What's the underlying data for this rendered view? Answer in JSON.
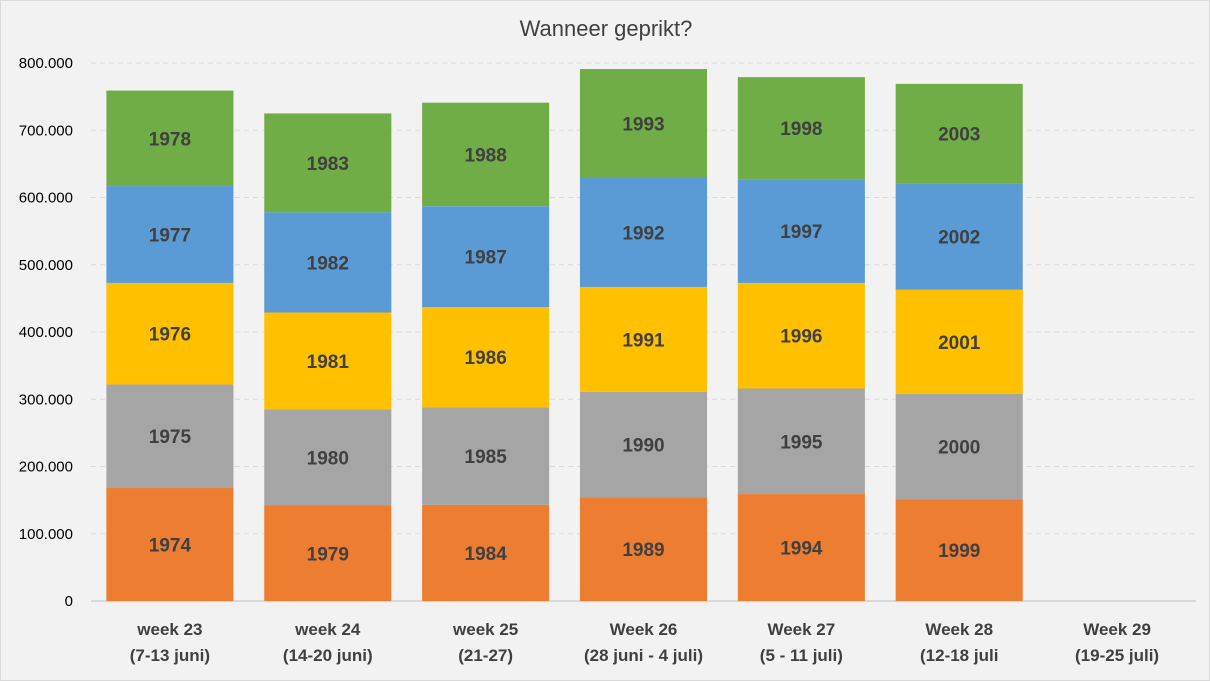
{
  "chart_data": {
    "type": "bar",
    "stacked": true,
    "title": "Wanneer geprikt?",
    "xlabel": "",
    "ylabel": "",
    "ylim": [
      0,
      800000
    ],
    "yticks": [
      0,
      100000,
      200000,
      300000,
      400000,
      500000,
      600000,
      700000,
      800000
    ],
    "ytick_labels": [
      "0",
      "100.000",
      "200.000",
      "300.000",
      "400.000",
      "500.000",
      "600.000",
      "700.000",
      "800.000"
    ],
    "grid": true,
    "legend": "none",
    "colors": [
      "#ed7d31",
      "#a5a5a5",
      "#ffc000",
      "#5b9bd5",
      "#70ad47"
    ],
    "categories": [
      [
        "week 23",
        "(7-13 juni)"
      ],
      [
        "week 24",
        "(14-20 juni)"
      ],
      [
        "week 25",
        "(21-27)"
      ],
      [
        "Week 26",
        "(28 juni - 4 juli)"
      ],
      [
        "Week 27",
        "(5 - 11 juli)"
      ],
      [
        "Week 28",
        "(12-18 juli"
      ],
      [
        "Week 29",
        "(19-25 juli)"
      ]
    ],
    "segments": [
      [
        {
          "label": "1974",
          "value": 168000
        },
        {
          "label": "1975",
          "value": 154000
        },
        {
          "label": "1976",
          "value": 151000
        },
        {
          "label": "1977",
          "value": 144000
        },
        {
          "label": "1978",
          "value": 142000
        }
      ],
      [
        {
          "label": "1979",
          "value": 142000
        },
        {
          "label": "1980",
          "value": 143000
        },
        {
          "label": "1981",
          "value": 144000
        },
        {
          "label": "1982",
          "value": 149000
        },
        {
          "label": "1983",
          "value": 147000
        }
      ],
      [
        {
          "label": "1984",
          "value": 143000
        },
        {
          "label": "1985",
          "value": 145000
        },
        {
          "label": "1986",
          "value": 149000
        },
        {
          "label": "1987",
          "value": 150000
        },
        {
          "label": "1988",
          "value": 154000
        }
      ],
      [
        {
          "label": "1989",
          "value": 154000
        },
        {
          "label": "1990",
          "value": 157000
        },
        {
          "label": "1991",
          "value": 156000
        },
        {
          "label": "1992",
          "value": 162000
        },
        {
          "label": "1993",
          "value": 162000
        }
      ],
      [
        {
          "label": "1994",
          "value": 159000
        },
        {
          "label": "1995",
          "value": 157000
        },
        {
          "label": "1996",
          "value": 157000
        },
        {
          "label": "1997",
          "value": 154000
        },
        {
          "label": "1998",
          "value": 152000
        }
      ],
      [
        {
          "label": "1999",
          "value": 151000
        },
        {
          "label": "2000",
          "value": 157000
        },
        {
          "label": "2001",
          "value": 155000
        },
        {
          "label": "2002",
          "value": 158000
        },
        {
          "label": "2003",
          "value": 148000
        }
      ],
      []
    ]
  }
}
